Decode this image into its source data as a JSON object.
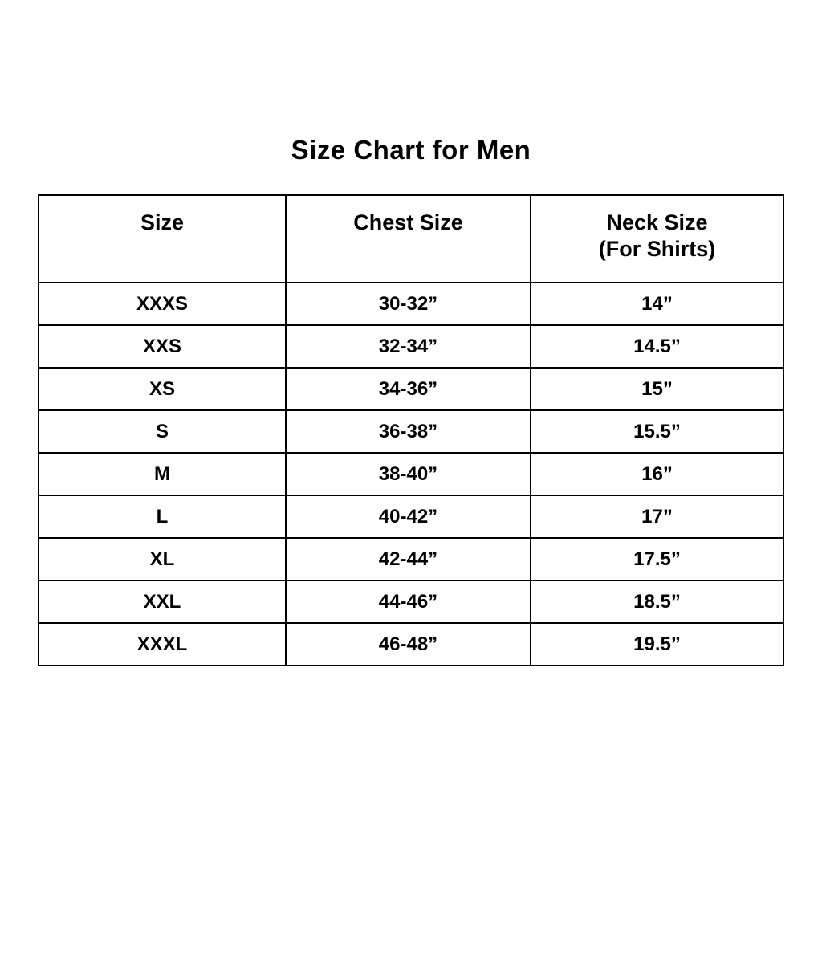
{
  "page": {
    "title": "Size Chart for Men",
    "background_color": "#ffffff",
    "text_color": "#000000",
    "border_color": "#000000"
  },
  "chart_data": {
    "type": "table",
    "title": "Size Chart for Men",
    "columns": [
      "Size",
      "Chest Size",
      "Neck Size (For Shirts)"
    ],
    "header": {
      "size": "Size",
      "chest": "Chest Size",
      "neck_line1": "Neck Size",
      "neck_line2": "(For Shirts)"
    },
    "rows": [
      [
        "XXXS",
        "30-32”",
        "14”"
      ],
      [
        "XXS",
        "32-34”",
        "14.5”"
      ],
      [
        "XS",
        "34-36”",
        "15”"
      ],
      [
        "S",
        "36-38”",
        "15.5”"
      ],
      [
        "M",
        "38-40”",
        "16”"
      ],
      [
        "L",
        "40-42”",
        "17”"
      ],
      [
        "XL",
        "42-44”",
        "17.5”"
      ],
      [
        "XXL",
        "44-46”",
        "18.5”"
      ],
      [
        "XXXL",
        "46-48”",
        "19.5”"
      ]
    ]
  }
}
